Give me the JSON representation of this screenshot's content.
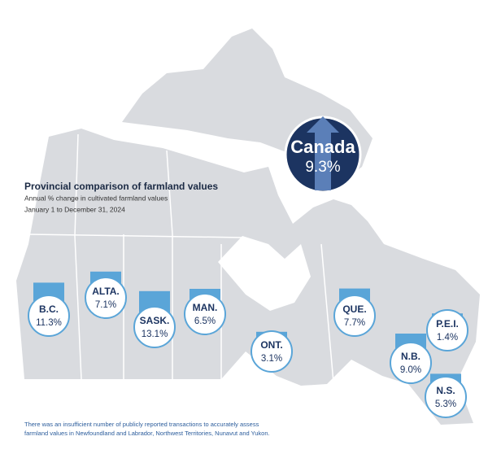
{
  "title": "Provincial comparison of farmland values",
  "subtitle": "Annual % change in cultivated farmland values",
  "period": "January 1 to December 31, 2024",
  "national": {
    "name": "Canada",
    "value": 9.3,
    "value_label": "9.3%"
  },
  "provinces": [
    {
      "name": "B.C.",
      "value": 11.3,
      "value_label": "11.3%"
    },
    {
      "name": "ALTA.",
      "value": 7.1,
      "value_label": "7.1%"
    },
    {
      "name": "SASK.",
      "value": 13.1,
      "value_label": "13.1%"
    },
    {
      "name": "MAN.",
      "value": 6.5,
      "value_label": "6.5%"
    },
    {
      "name": "ONT.",
      "value": 3.1,
      "value_label": "3.1%"
    },
    {
      "name": "QUE.",
      "value": 7.7,
      "value_label": "7.7%"
    },
    {
      "name": "N.B.",
      "value": 9.0,
      "value_label": "9.0%"
    },
    {
      "name": "P.E.I.",
      "value": 1.4,
      "value_label": "1.4%"
    },
    {
      "name": "N.S.",
      "value": 5.3,
      "value_label": "5.3%"
    }
  ],
  "footnote": [
    "There was an insufficient number of publicly reported transactions to accurately assess",
    "farmland values in Newfoundland and Labrador, Northwest Territories, Nunavut and Yukon."
  ]
}
